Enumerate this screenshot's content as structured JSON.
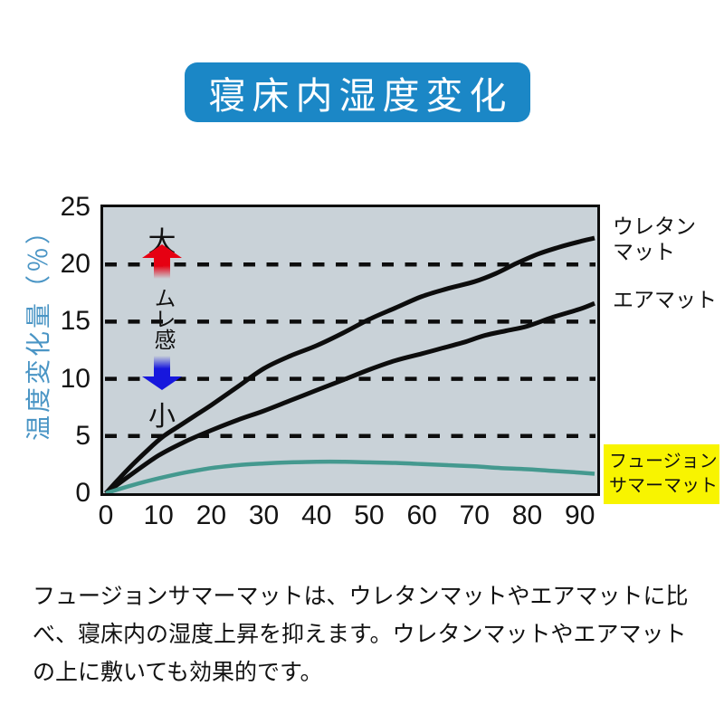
{
  "title": "寝床内湿度変化",
  "colors": {
    "banner_blue": "#1b87c6",
    "plot_background": "#c9d2d8",
    "grid_black": "#0d0d0d",
    "ylabel_blue": "#4a95c5",
    "highlight_yellow": "#f8f400",
    "arrow_red": "#e60012",
    "arrow_blue": "#1717dd",
    "fusion_teal": "#44998f"
  },
  "chart_data": {
    "type": "line",
    "title": "寝床内湿度変化",
    "xlabel": "",
    "ylabel": "温度変化量（％）",
    "xlim": [
      0,
      92.8
    ],
    "ylim": [
      0,
      25
    ],
    "x_ticks": [
      0,
      10,
      20,
      30,
      40,
      50,
      60,
      70,
      80,
      90
    ],
    "y_ticks": [
      0,
      5,
      10,
      15,
      20,
      25
    ],
    "gridlines_y": [
      5,
      10,
      15,
      20
    ],
    "grid_style": "dashed",
    "legend_position": "right-outside",
    "series": [
      {
        "name": "ウレタンマット",
        "color": "#0d0d0d",
        "stroke_width": 5,
        "points": [
          [
            0,
            0
          ],
          [
            4,
            2
          ],
          [
            8,
            3.8
          ],
          [
            11,
            5
          ],
          [
            14,
            5.9
          ],
          [
            17,
            6.8
          ],
          [
            20,
            7.7
          ],
          [
            25,
            9.3
          ],
          [
            30,
            10.9
          ],
          [
            35,
            12
          ],
          [
            40,
            12.9
          ],
          [
            45,
            14
          ],
          [
            50,
            15.2
          ],
          [
            55,
            16.2
          ],
          [
            60,
            17.2
          ],
          [
            65,
            17.9
          ],
          [
            70,
            18.5
          ],
          [
            74,
            19.2
          ],
          [
            78,
            20.1
          ],
          [
            82,
            20.9
          ],
          [
            86,
            21.5
          ],
          [
            90,
            22
          ],
          [
            92.8,
            22.3
          ]
        ]
      },
      {
        "name": "エアマット",
        "color": "#0d0d0d",
        "stroke_width": 5,
        "points": [
          [
            0,
            0
          ],
          [
            5,
            1.7
          ],
          [
            10,
            3.3
          ],
          [
            15,
            4.5
          ],
          [
            20,
            5.5
          ],
          [
            25,
            6.4
          ],
          [
            30,
            7.2
          ],
          [
            35,
            8.1
          ],
          [
            40,
            9
          ],
          [
            45,
            9.9
          ],
          [
            50,
            10.8
          ],
          [
            55,
            11.6
          ],
          [
            60,
            12.2
          ],
          [
            64,
            12.7
          ],
          [
            68,
            13.2
          ],
          [
            72,
            13.8
          ],
          [
            76,
            14.2
          ],
          [
            80,
            14.6
          ],
          [
            85,
            15.4
          ],
          [
            90,
            16.1
          ],
          [
            92.8,
            16.6
          ]
        ]
      },
      {
        "name": "フュージョンサマーマット",
        "color": "#44998f",
        "stroke_width": 4.5,
        "points": [
          [
            0,
            0
          ],
          [
            5,
            0.7
          ],
          [
            10,
            1.3
          ],
          [
            15,
            1.8
          ],
          [
            20,
            2.2
          ],
          [
            25,
            2.45
          ],
          [
            30,
            2.6
          ],
          [
            35,
            2.7
          ],
          [
            40,
            2.75
          ],
          [
            45,
            2.75
          ],
          [
            50,
            2.7
          ],
          [
            55,
            2.65
          ],
          [
            60,
            2.55
          ],
          [
            65,
            2.45
          ],
          [
            70,
            2.35
          ],
          [
            75,
            2.2
          ],
          [
            80,
            2.1
          ],
          [
            85,
            1.95
          ],
          [
            90,
            1.8
          ],
          [
            92.8,
            1.7
          ]
        ]
      }
    ]
  },
  "indicator": {
    "large": "大",
    "word": "ムレ感",
    "small": "小"
  },
  "legend": {
    "urethane": "ウレタン\nマット",
    "air": "エアマット",
    "fusion": "フュージョン\nサマーマット"
  },
  "description": {
    "line1": "フュージョンサマーマットは、ウレタンマットやエアマットに比",
    "line2": "べ、寝床内の湿度上昇を抑えます。ウレタンマットやエアマット",
    "line3": "の上に敷いても効果的です。"
  }
}
